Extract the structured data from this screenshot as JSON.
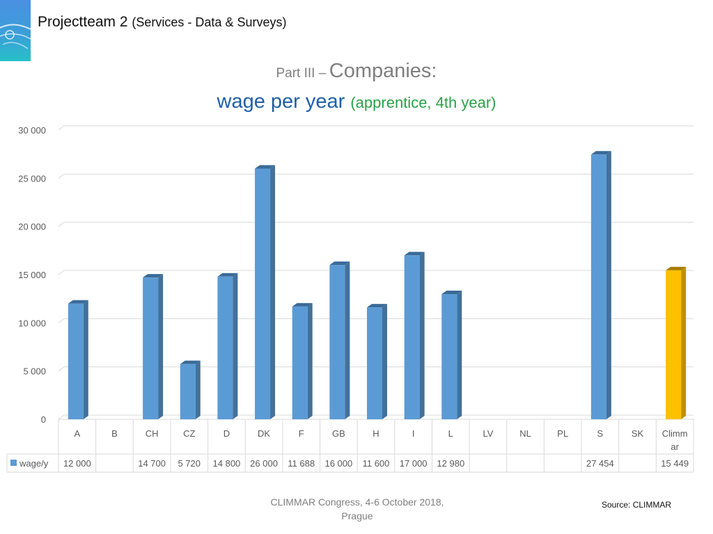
{
  "header": {
    "title": "Projectteam 2",
    "subtitle": "(Services - Data & Surveys)"
  },
  "chart_data": {
    "type": "bar",
    "title_part1": "Part III –",
    "title_part2": "Companies:",
    "title_main": "wage per year",
    "title_paren": "(apprentice, 4th year)",
    "categories": [
      "A",
      "B",
      "CH",
      "CZ",
      "D",
      "DK",
      "F",
      "GB",
      "H",
      "I",
      "L",
      "LV",
      "NL",
      "PL",
      "S",
      "SK",
      "Climmar"
    ],
    "category_labels": [
      [
        "A"
      ],
      [
        "B"
      ],
      [
        "CH"
      ],
      [
        "CZ"
      ],
      [
        "D"
      ],
      [
        "DK"
      ],
      [
        "F"
      ],
      [
        "GB"
      ],
      [
        "H"
      ],
      [
        "I"
      ],
      [
        "L"
      ],
      [
        "LV"
      ],
      [
        "NL"
      ],
      [
        "PL"
      ],
      [
        "S"
      ],
      [
        "SK"
      ],
      [
        "Climm",
        "ar"
      ]
    ],
    "series": [
      {
        "name": "wage/y",
        "values": [
          12000,
          null,
          14700,
          5720,
          14800,
          26000,
          11688,
          16000,
          11600,
          17000,
          12980,
          null,
          null,
          null,
          27454,
          null,
          15449
        ]
      }
    ],
    "table_values": [
      "12 000",
      "",
      "14 700",
      "5 720",
      "14 800",
      "26 000",
      "11 688",
      "16 000",
      "11 600",
      "17 000",
      "12 980",
      "",
      "",
      "",
      "27 454",
      "",
      "15 449"
    ],
    "ylim": [
      0,
      30000
    ],
    "yticks": [
      0,
      5000,
      10000,
      15000,
      20000,
      25000,
      30000
    ],
    "ytick_labels": [
      "0",
      "5 000",
      "10 000",
      "15 000",
      "20 000",
      "25 000",
      "30 000"
    ],
    "grid": true,
    "highlight_category": "Climmar",
    "colors": {
      "bar": "#5b9bd5",
      "bar_side": "#41719c",
      "bar_top": "#3a6b97",
      "highlight": "#ffc000",
      "highlight_side": "#bf9000",
      "highlight_top": "#a67c00"
    }
  },
  "footer": {
    "line1": "CLIMMAR Congress, 4-6 October 2018,",
    "line2": "Prague"
  },
  "source": "Source: CLIMMAR"
}
